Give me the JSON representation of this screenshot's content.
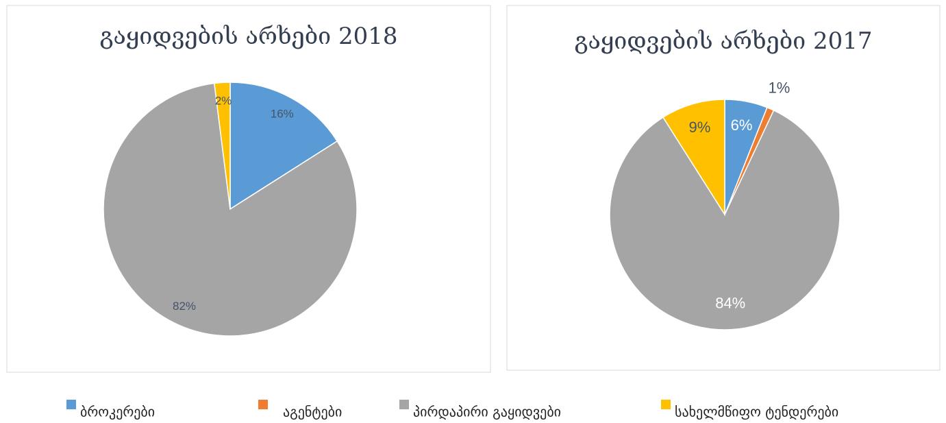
{
  "legend": {
    "labels": [
      "ბროკერები",
      "აგენტები",
      "პირდაპირი გაყიდვები",
      "სახელმწიფო ტენდერები"
    ],
    "colors": [
      "#5b9bd5",
      "#ed7d31",
      "#a5a5a5",
      "#ffc000"
    ]
  },
  "chart_data": [
    {
      "type": "pie",
      "title": "გაყიდვების არხები 2018",
      "values": [
        16,
        0,
        82,
        2
      ],
      "value_labels": [
        "16%",
        null,
        "82%",
        "2%"
      ]
    },
    {
      "type": "pie",
      "title": "გაყიდვების არხები 2017",
      "values": [
        6,
        1,
        84,
        9
      ],
      "value_labels": [
        "6%",
        "1%",
        "84%",
        "9%"
      ]
    }
  ]
}
